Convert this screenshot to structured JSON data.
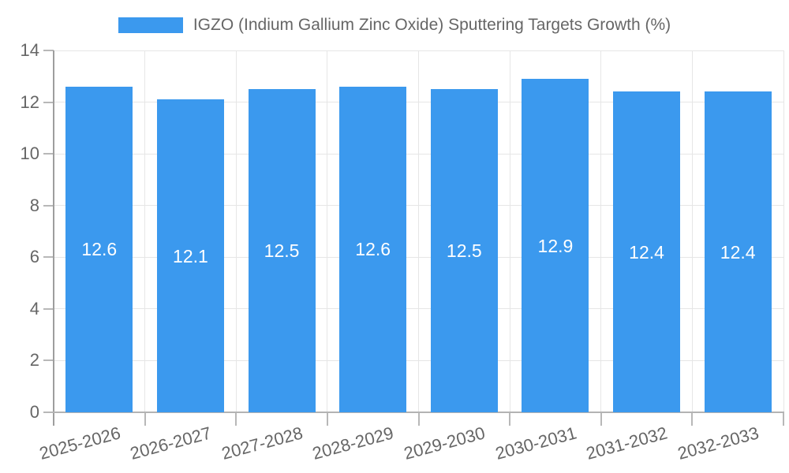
{
  "chart_data": {
    "type": "bar",
    "legend": {
      "position": "top",
      "label": "IGZO (Indium Gallium Zinc Oxide) Sputtering Targets Growth (%)"
    },
    "categories": [
      "2025-2026",
      "2026-2027",
      "2027-2028",
      "2028-2029",
      "2029-2030",
      "2030-2031",
      "2031-2032",
      "2032-2033"
    ],
    "values": [
      12.6,
      12.1,
      12.5,
      12.6,
      12.5,
      12.9,
      12.4,
      12.4
    ],
    "value_label_decimals": 1,
    "xlabel": "",
    "ylabel": "",
    "ylim": [
      0,
      14
    ],
    "yticks": [
      0,
      2,
      4,
      6,
      8,
      10,
      12,
      14
    ],
    "grid": true,
    "colors": {
      "bar": "#3B99EE",
      "grid_line": "#E6E6E6",
      "y_axis_line": "#9E9E9E",
      "x_axis_line": "#B3B3B3",
      "tick_mark": "#B8B8B8",
      "tick_text": "#666666",
      "value_label_text": "#FFFFFF"
    }
  }
}
